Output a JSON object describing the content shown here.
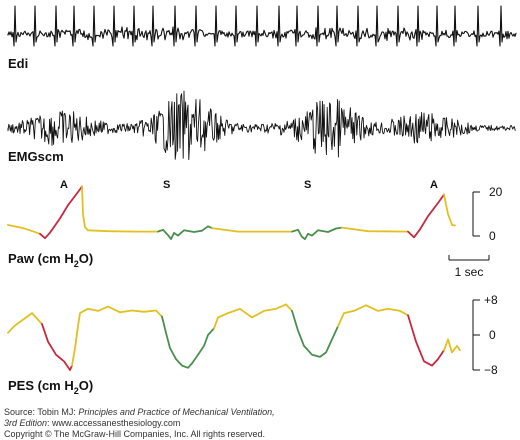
{
  "figure": {
    "panels": [
      {
        "label": "Edi",
        "sub": "",
        "after": ""
      },
      {
        "label": "EMGscm",
        "sub": "",
        "after": ""
      },
      {
        "label": "Paw (cm H",
        "sub": "2",
        "after": "O)"
      },
      {
        "label": "PES (cm H",
        "sub": "2",
        "after": "O)"
      }
    ],
    "markers": [
      "A",
      "S",
      "S",
      "A"
    ],
    "scale_bar": "1 sec",
    "colors": {
      "asynchrony": "#c8283e",
      "synchrony": "#4a8f4c",
      "neutral": "#e2c020",
      "trace": "#111111"
    }
  },
  "chart_data": [
    {
      "type": "line",
      "name": "Edi",
      "description_of_content": "diaphragm electrical activity, raw tracing with regular QRS spikes",
      "title": "Edi"
    },
    {
      "type": "line",
      "name": "EMGscm",
      "title": "EMGscm"
    },
    {
      "type": "line",
      "title": "Paw (cm H2O)",
      "ylim": [
        0,
        20
      ],
      "yticks": [
        "20",
        "0"
      ],
      "phase_labels": [
        "A",
        "S",
        "S",
        "A"
      ],
      "segments": [
        {
          "phase": "neutral",
          "points": [
            [
              0,
              5
            ],
            [
              0.8,
              3.5
            ],
            [
              1.6,
              1
            ]
          ]
        },
        {
          "phase": "asynchrony",
          "points": [
            [
              1.6,
              1
            ],
            [
              1.85,
              -1
            ],
            [
              2.1,
              1.5
            ],
            [
              2.6,
              8
            ],
            [
              3.0,
              14
            ],
            [
              3.5,
              20
            ],
            [
              3.7,
              22.5
            ]
          ]
        },
        {
          "phase": "neutral",
          "points": [
            [
              3.7,
              22.5
            ],
            [
              3.75,
              10
            ],
            [
              3.85,
              4
            ],
            [
              4.0,
              2.6
            ],
            [
              5.0,
              2.2
            ],
            [
              6.5,
              2.0
            ],
            [
              7.5,
              2.0
            ]
          ]
        },
        {
          "phase": "synchrony",
          "points": [
            [
              7.5,
              2.0
            ],
            [
              7.75,
              2.8
            ],
            [
              8.0,
              0.4
            ],
            [
              8.15,
              -1.4
            ],
            [
              8.3,
              1.4
            ],
            [
              8.5,
              0.2
            ],
            [
              8.8,
              2.6
            ],
            [
              9.3,
              1.8
            ],
            [
              9.7,
              2.4
            ],
            [
              10.0,
              4.4
            ],
            [
              10.2,
              3.6
            ]
          ]
        },
        {
          "phase": "neutral",
          "points": [
            [
              10.2,
              3.6
            ],
            [
              11.5,
              2.0
            ],
            [
              14.2,
              2.0
            ]
          ]
        },
        {
          "phase": "synchrony",
          "points": [
            [
              14.2,
              2.0
            ],
            [
              14.5,
              2.8
            ],
            [
              14.7,
              -0.4
            ],
            [
              14.85,
              -1.4
            ],
            [
              15.0,
              1.0
            ],
            [
              15.2,
              0.2
            ],
            [
              15.5,
              2.6
            ],
            [
              16.0,
              1.8
            ],
            [
              16.4,
              3.4
            ],
            [
              16.7,
              3.8
            ]
          ]
        },
        {
          "phase": "neutral",
          "points": [
            [
              16.7,
              3.8
            ],
            [
              18.0,
              2.2
            ],
            [
              20.0,
              2.0
            ]
          ]
        },
        {
          "phase": "asynchrony",
          "points": [
            [
              20.0,
              2.0
            ],
            [
              20.3,
              -0.6
            ],
            [
              20.6,
              3.0
            ],
            [
              21.0,
              9.0
            ],
            [
              21.5,
              15.0
            ],
            [
              21.8,
              18.8
            ]
          ]
        },
        {
          "phase": "neutral",
          "points": [
            [
              21.8,
              18.8
            ],
            [
              22.0,
              10.0
            ],
            [
              22.2,
              5.0
            ],
            [
              22.35,
              4.8
            ]
          ]
        }
      ]
    },
    {
      "type": "line",
      "title": "PES (cm H2O)",
      "ylim": [
        -8,
        8
      ],
      "yticks": [
        "+8",
        "0",
        "−8"
      ],
      "segments": [
        {
          "phase": "neutral",
          "points": [
            [
              0,
              0.5
            ],
            [
              0.3,
              2
            ],
            [
              0.6,
              3
            ],
            [
              0.9,
              4
            ],
            [
              1.2,
              5
            ],
            [
              1.4,
              4
            ],
            [
              1.7,
              2.5
            ]
          ]
        },
        {
          "phase": "asynchrony",
          "points": [
            [
              1.7,
              2.5
            ],
            [
              2.0,
              -1.5
            ],
            [
              2.4,
              -4.5
            ],
            [
              2.8,
              -6.0
            ],
            [
              3.1,
              -8.0
            ],
            [
              3.2,
              -7.0
            ]
          ]
        },
        {
          "phase": "neutral",
          "points": [
            [
              3.2,
              -7.0
            ],
            [
              3.35,
              -3.0
            ],
            [
              3.5,
              2.0
            ],
            [
              3.6,
              5.0
            ],
            [
              4.0,
              6.0
            ],
            [
              4.5,
              5.5
            ],
            [
              5.0,
              6.5
            ],
            [
              5.6,
              5.2
            ],
            [
              6.2,
              5.6
            ],
            [
              6.8,
              5.3
            ],
            [
              7.4,
              5.6
            ],
            [
              7.7,
              4.2
            ]
          ]
        },
        {
          "phase": "synchrony",
          "points": [
            [
              7.7,
              4.2
            ],
            [
              7.9,
              0.5
            ],
            [
              8.1,
              -3.0
            ],
            [
              8.4,
              -5.5
            ],
            [
              8.7,
              -7.0
            ],
            [
              9.0,
              -7.5
            ],
            [
              9.2,
              -6.5
            ],
            [
              9.5,
              -4.5
            ],
            [
              9.8,
              -2.5
            ],
            [
              10.0,
              0.0
            ],
            [
              10.3,
              1.5
            ]
          ]
        },
        {
          "phase": "neutral",
          "points": [
            [
              10.3,
              1.5
            ],
            [
              10.5,
              4.0
            ],
            [
              11.0,
              5.0
            ],
            [
              11.6,
              6.0
            ],
            [
              12.2,
              4.0
            ],
            [
              12.8,
              5.5
            ],
            [
              13.4,
              6.0
            ],
            [
              13.9,
              7.0
            ],
            [
              14.2,
              5.5
            ]
          ]
        },
        {
          "phase": "synchrony",
          "points": [
            [
              14.2,
              5.5
            ],
            [
              14.5,
              1.0
            ],
            [
              14.8,
              -2.5
            ],
            [
              15.2,
              -4.5
            ],
            [
              15.6,
              -5.0
            ],
            [
              15.9,
              -4.0
            ],
            [
              16.2,
              -1.0
            ],
            [
              16.5,
              2.0
            ]
          ]
        },
        {
          "phase": "neutral",
          "points": [
            [
              16.5,
              2.0
            ],
            [
              16.8,
              5.0
            ],
            [
              17.3,
              5.5
            ],
            [
              17.9,
              6.8
            ],
            [
              18.5,
              5.5
            ],
            [
              19.0,
              6.0
            ],
            [
              19.6,
              5.5
            ],
            [
              20.0,
              4.5
            ]
          ]
        },
        {
          "phase": "asynchrony",
          "points": [
            [
              20.0,
              4.5
            ],
            [
              20.4,
              -1.5
            ],
            [
              20.8,
              -6.0
            ],
            [
              21.2,
              -7.0
            ],
            [
              21.5,
              -5.5
            ],
            [
              21.8,
              -3.5
            ]
          ]
        },
        {
          "phase": "neutral",
          "points": [
            [
              21.8,
              -3.5
            ],
            [
              22.0,
              -1.0
            ],
            [
              22.2,
              -4.0
            ],
            [
              22.45,
              -2.5
            ],
            [
              22.6,
              -3.5
            ]
          ]
        }
      ]
    }
  ],
  "source": {
    "line1_prefix": "Source: Tobin MJ: ",
    "line1_title": "Principles and Practice of Mechanical Ventilation,",
    "line2_prefix": "3rd Edition",
    "line2_rest": ": www.accessanesthesiology.com",
    "line3": "Copyright © The McGraw-Hill Companies, Inc. All rights reserved."
  }
}
